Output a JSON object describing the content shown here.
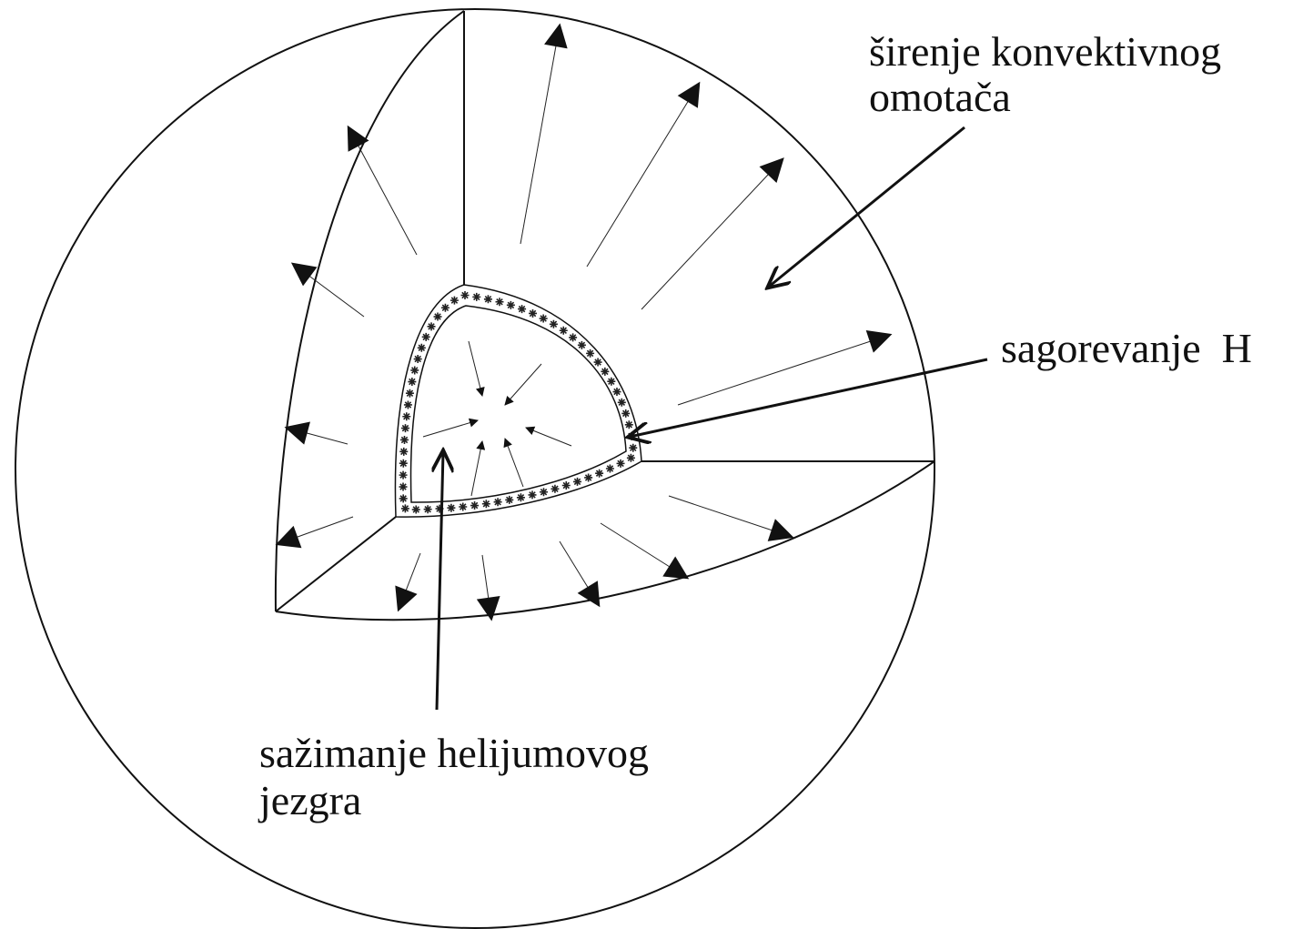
{
  "labels": {
    "envelope": [
      "širenje konvektivnog",
      "omotača"
    ],
    "shell": [
      "sagorevanje  H"
    ],
    "core": [
      "sažimanje helijumovog",
      "jezgra"
    ]
  }
}
